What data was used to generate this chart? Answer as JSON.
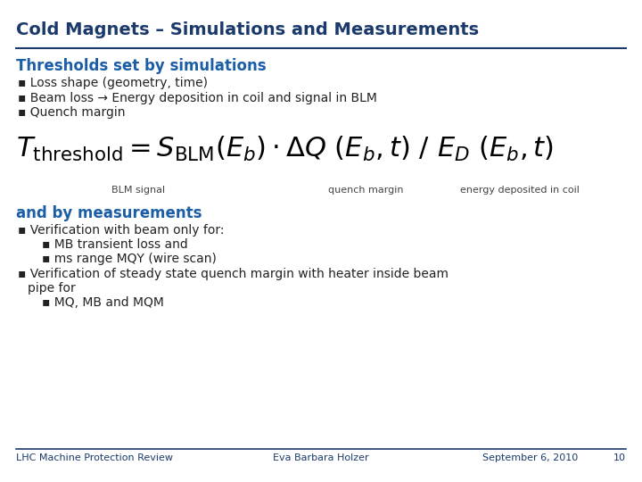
{
  "title": "Cold Magnets – Simulations and Measurements",
  "title_color": "#1B3A6B",
  "bg_color": "#FFFFFF",
  "section1_header": "Thresholds set by simulations",
  "section1_color": "#1B5EA6",
  "bullet1": "Loss shape (geometry, time)",
  "bullet2": "Beam loss → Energy deposition in coil and signal in BLM",
  "bullet3": "Quench margin",
  "section2_header": "and by measurements",
  "section2_color": "#1B5EA6",
  "sub_bullet1": "Verification with beam only for:",
  "sub_sub_bullet1": "MB transient loss and",
  "sub_sub_bullet2": "ms range MQY (wire scan)",
  "sub_bullet2_line1": "Verification of steady state quench margin with heater inside beam",
  "sub_bullet2_line2": "pipe for",
  "sub_sub_bullet3": "MQ, MB and MQM",
  "footer_left": "LHC Machine Protection Review",
  "footer_center": "Eva Barbara Holzer",
  "footer_right": "September 6, 2010",
  "footer_page": "10",
  "footer_color": "#1B3A6B",
  "line_color": "#1B3A6B",
  "bullet_color": "#222222",
  "formula_color": "#000000",
  "label_color": "#444444",
  "title_fs": 14,
  "section_fs": 12,
  "bullet_fs": 10,
  "label_fs": 8,
  "footer_fs": 8
}
